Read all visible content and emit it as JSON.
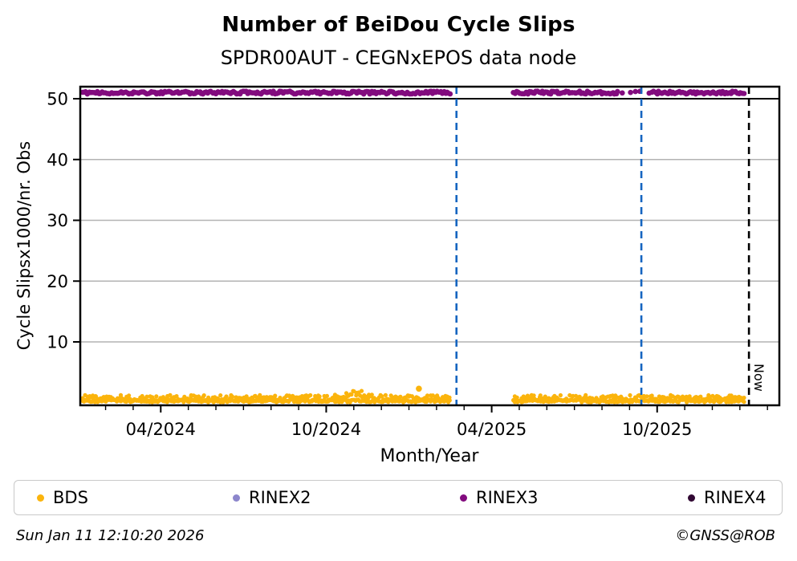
{
  "header": {
    "title": "Number of BeiDou Cycle Slips",
    "subtitle": "SPDR00AUT - CEGNxEPOS data node"
  },
  "footer": {
    "timestamp": "Sun Jan 11 12:10:20 2026",
    "credit": "©GNSS@ROB"
  },
  "chart_data": {
    "type": "scatter",
    "title": "Number of BeiDou Cycle Slips",
    "subtitle": "SPDR00AUT - CEGNxEPOS data node",
    "xlabel": "Month/Year",
    "ylabel": "Cycle Slipsx1000/nr. Obs",
    "grid": "horizontal-only",
    "x_axis": {
      "start_date": "2024-01-01",
      "end_date": "2026-02-15",
      "minor_tick_interval": "month",
      "major_ticks": [
        {
          "date": "2024-04-01",
          "label": "04/2024"
        },
        {
          "date": "2024-10-01",
          "label": "10/2024"
        },
        {
          "date": "2025-04-01",
          "label": "04/2025"
        },
        {
          "date": "2025-10-01",
          "label": "10/2025"
        }
      ]
    },
    "y_axis": {
      "min": -0.4,
      "max": 52,
      "ticks": [
        10,
        20,
        30,
        40,
        50
      ],
      "grid_color": "#b3b3b3",
      "grid50_color": "#000000"
    },
    "series": [
      {
        "name": "BDS",
        "color": "#FBB40C",
        "kind": "dense-scatter",
        "value_band": [
          0.05,
          1.7
        ],
        "segments": [
          {
            "start": "2024-01-05",
            "end": "2025-02-17"
          },
          {
            "start": "2025-04-25",
            "end": "2026-01-06"
          }
        ],
        "bump": {
          "center": "2024-11-01",
          "height": 2.2
        },
        "outlier": {
          "date": "2025-01-12",
          "value": 2.3
        }
      },
      {
        "name": "RINEX2",
        "color": "#8C86CC",
        "kind": "dense-scatter",
        "segments": []
      },
      {
        "name": "RINEX3",
        "color": "#820B7E",
        "kind": "dense-scatter",
        "value": 51,
        "segments": [
          {
            "start": "2024-01-05",
            "end": "2025-02-17"
          },
          {
            "start": "2025-04-25",
            "end": "2025-08-18"
          },
          {
            "start": "2025-08-18",
            "end": "2025-09-26",
            "sparse": true
          },
          {
            "start": "2025-09-26",
            "end": "2026-01-06"
          }
        ]
      },
      {
        "name": "RINEX4",
        "color": "#310833",
        "kind": "dense-scatter",
        "segments": []
      }
    ],
    "vlines": [
      {
        "name": "gap-start-line",
        "date": "2025-02-23",
        "color": "#1565C0",
        "style": "dashed"
      },
      {
        "name": "mid-marker-line",
        "date": "2025-09-14",
        "color": "#1565C0",
        "style": "dashed"
      },
      {
        "name": "now-line",
        "date": "2026-01-11",
        "color": "#000000",
        "style": "dashed",
        "label": "Now"
      }
    ],
    "legend": {
      "position": "bottom",
      "entries": [
        "BDS",
        "RINEX2",
        "RINEX3",
        "RINEX4"
      ]
    }
  }
}
